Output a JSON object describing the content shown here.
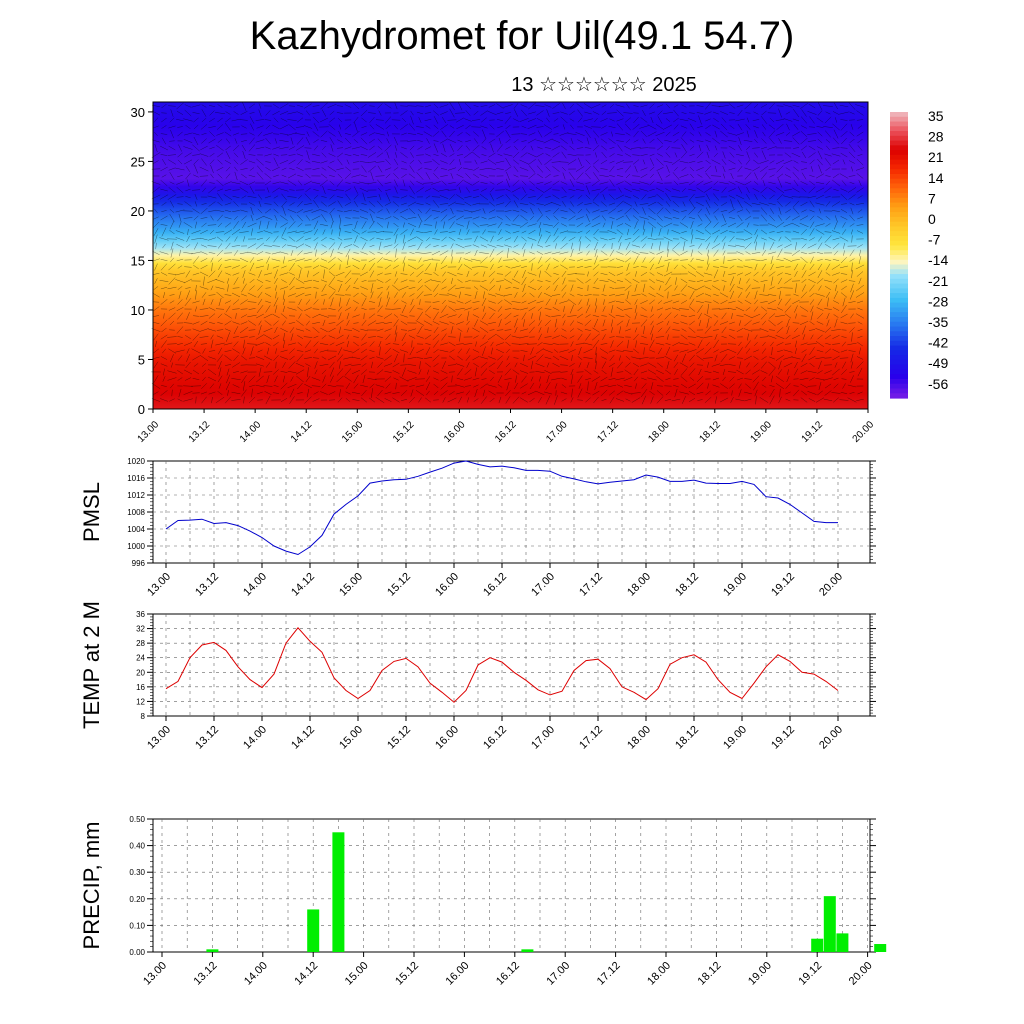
{
  "page": {
    "title": "Kazhydromet for Uil(49.1 54.7)",
    "date": "13 ☆☆☆☆☆☆ 2025"
  },
  "colors": {
    "pmsl_line": "#0000cc",
    "temp_line": "#dd0000",
    "precip_bar": "#00ee00",
    "grid": "#666666"
  },
  "chart_data": [
    {
      "type": "heatmap",
      "title": "",
      "xlabel": "",
      "ylabel": "",
      "x_ticks": [
        "13.00",
        "13.12",
        "14.00",
        "14.12",
        "15.00",
        "15.12",
        "16.00",
        "16.12",
        "17.00",
        "17.12",
        "18.00",
        "18.12",
        "19.00",
        "19.12",
        "20.00"
      ],
      "y_ticks": [
        0,
        5,
        10,
        15,
        20,
        25,
        30
      ],
      "ylim": [
        0,
        31
      ],
      "colorbar_labels": [
        "35",
        "28",
        "21",
        "14",
        "7",
        "0",
        "-7",
        "-14",
        "-21",
        "-28",
        "-35",
        "-42",
        "-49",
        "-56"
      ],
      "colorbar_range": [
        -63,
        42
      ],
      "overlay": "wind vectors",
      "temperature_profile": [
        {
          "level": 0,
          "value": 30
        },
        {
          "level": 5,
          "value": 24
        },
        {
          "level": 10,
          "value": 12
        },
        {
          "level": 14,
          "value": 0
        },
        {
          "level": 15.5,
          "value": -12
        },
        {
          "level": 18,
          "value": -30
        },
        {
          "level": 21,
          "value": -45
        },
        {
          "level": 23,
          "value": -60
        },
        {
          "level": 26,
          "value": -58
        },
        {
          "level": 31,
          "value": -52
        }
      ]
    },
    {
      "type": "line",
      "ylabel": "PMSL",
      "ylim": [
        996,
        1020
      ],
      "y_ticks": [
        "996",
        "1000",
        "1004",
        "1008",
        "1012",
        "1016",
        "1020"
      ],
      "x_ticks": [
        "13.00",
        "13.12",
        "14.00",
        "14.12",
        "15.00",
        "15.12",
        "16.00",
        "16.12",
        "17.00",
        "17.12",
        "18.00",
        "18.12",
        "19.00",
        "19.12",
        "20.00"
      ],
      "x": [
        0,
        3,
        6,
        9,
        12,
        15,
        18,
        21,
        24,
        27,
        30,
        33,
        36,
        39,
        42,
        45,
        48,
        51,
        54,
        57,
        60,
        63,
        66,
        69,
        72,
        75,
        78,
        81,
        84,
        87,
        90,
        93,
        96,
        99,
        102,
        105,
        108,
        111,
        114,
        117,
        120,
        123,
        126,
        129,
        132,
        135,
        138,
        141,
        144,
        147,
        150,
        153,
        156,
        159,
        162,
        165,
        168
      ],
      "series": [
        {
          "values": [
            1004.0,
            1006.0,
            1006.1,
            1006.3,
            1005.3,
            1005.5,
            1004.8,
            1003.5,
            1002.0,
            1000.0,
            998.8,
            998.0,
            999.8,
            1002.5,
            1007.5,
            1009.8,
            1011.8,
            1014.8,
            1015.3,
            1015.6,
            1015.7,
            1016.4,
            1017.4,
            1018.3,
            1019.5,
            1020.0,
            1019.2,
            1018.6,
            1018.8,
            1018.4,
            1017.8,
            1017.8,
            1017.6,
            1016.4,
            1015.8,
            1015.1,
            1014.6,
            1015.0,
            1015.3,
            1015.6,
            1016.7,
            1016.2,
            1015.2,
            1015.2,
            1015.5,
            1014.8,
            1014.7,
            1014.7,
            1015.2,
            1014.5,
            1011.6,
            1011.3,
            1009.8,
            1007.8,
            1005.8,
            1005.5,
            1005.5
          ]
        }
      ]
    },
    {
      "type": "line",
      "ylabel": "TEMP at 2 M",
      "ylim": [
        8,
        36
      ],
      "y_ticks": [
        "8",
        "12",
        "16",
        "20",
        "24",
        "28",
        "32",
        "36"
      ],
      "x_ticks": [
        "13.00",
        "13.12",
        "14.00",
        "14.12",
        "15.00",
        "15.12",
        "16.00",
        "16.12",
        "17.00",
        "17.12",
        "18.00",
        "18.12",
        "19.00",
        "19.12",
        "20.00"
      ],
      "x": [
        0,
        3,
        6,
        9,
        12,
        15,
        18,
        21,
        24,
        27,
        30,
        33,
        36,
        39,
        42,
        45,
        48,
        51,
        54,
        57,
        60,
        63,
        66,
        69,
        72,
        75,
        78,
        81,
        84,
        87,
        90,
        93,
        96,
        99,
        102,
        105,
        108,
        111,
        114,
        117,
        120,
        123,
        126,
        129,
        132,
        135,
        138,
        141,
        144,
        147,
        150,
        153,
        156,
        159,
        162,
        165,
        168
      ],
      "series": [
        {
          "values": [
            15.5,
            17.5,
            24.0,
            27.5,
            28.2,
            26.0,
            21.5,
            18.0,
            15.8,
            19.5,
            28.0,
            32.2,
            28.5,
            25.5,
            18.5,
            15.0,
            12.8,
            15.0,
            20.5,
            23.0,
            23.8,
            21.5,
            17.0,
            14.5,
            11.8,
            15.0,
            22.0,
            24.0,
            22.8,
            20.0,
            17.8,
            15.2,
            13.8,
            14.8,
            20.5,
            23.2,
            23.6,
            21.0,
            16.0,
            14.5,
            12.5,
            15.5,
            22.2,
            24.0,
            24.8,
            22.8,
            18.0,
            14.5,
            12.8,
            17.0,
            21.5,
            24.8,
            23.0,
            20.0,
            19.5,
            17.5,
            15.0
          ]
        }
      ]
    },
    {
      "type": "bar",
      "ylabel": "PRECIP, mm",
      "ylim": [
        0,
        0.5
      ],
      "y_ticks": [
        "0.00",
        "0.10",
        "0.20",
        "0.30",
        "0.40",
        "0.50"
      ],
      "x_ticks": [
        "13.00",
        "13.12",
        "14.00",
        "14.12",
        "15.00",
        "15.12",
        "16.00",
        "16.12",
        "17.00",
        "17.12",
        "18.00",
        "18.12",
        "19.00",
        "19.12",
        "20.00"
      ],
      "x": [
        12,
        36,
        42,
        87,
        156,
        159,
        162,
        171
      ],
      "values": [
        0.01,
        0.16,
        0.45,
        0.01,
        0.05,
        0.21,
        0.07,
        0.03
      ]
    }
  ]
}
